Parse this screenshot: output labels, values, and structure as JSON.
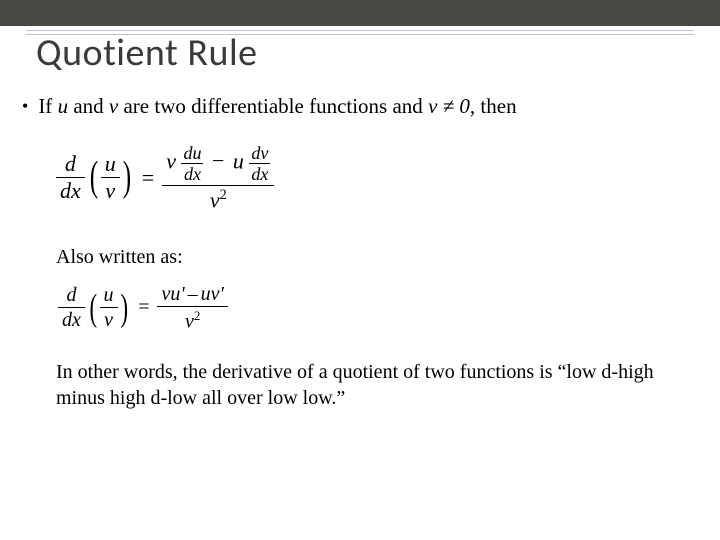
{
  "colors": {
    "top_band": "#4a4842",
    "rule": "#b8c4c9",
    "title": "#3a3a38",
    "text": "#000000",
    "background": "#ffffff"
  },
  "title": "Quotient Rule",
  "bullet_text_pre": "If ",
  "bullet_u": "u",
  "bullet_mid1": " and ",
  "bullet_v": "v",
  "bullet_mid2": " are two differentiable functions and ",
  "bullet_cond": "v ≠ 0",
  "bullet_post": ", then",
  "also_written": "Also written as:",
  "summary": "In other words, the derivative of a quotient of two functions is “low d-high minus high d-low all over low low.”",
  "math1": {
    "d": "d",
    "dx": "dx",
    "u": "u",
    "v": "v",
    "du": "du",
    "dv": "dv",
    "v2": "v",
    "sq": "2",
    "minus": "−"
  },
  "math2": {
    "d": "d",
    "dx": "dx",
    "u": "u",
    "v": "v",
    "vu_p": "vu'",
    "uv_p": "uv'",
    "minus": "–",
    "v2": "v",
    "sq": "2"
  }
}
